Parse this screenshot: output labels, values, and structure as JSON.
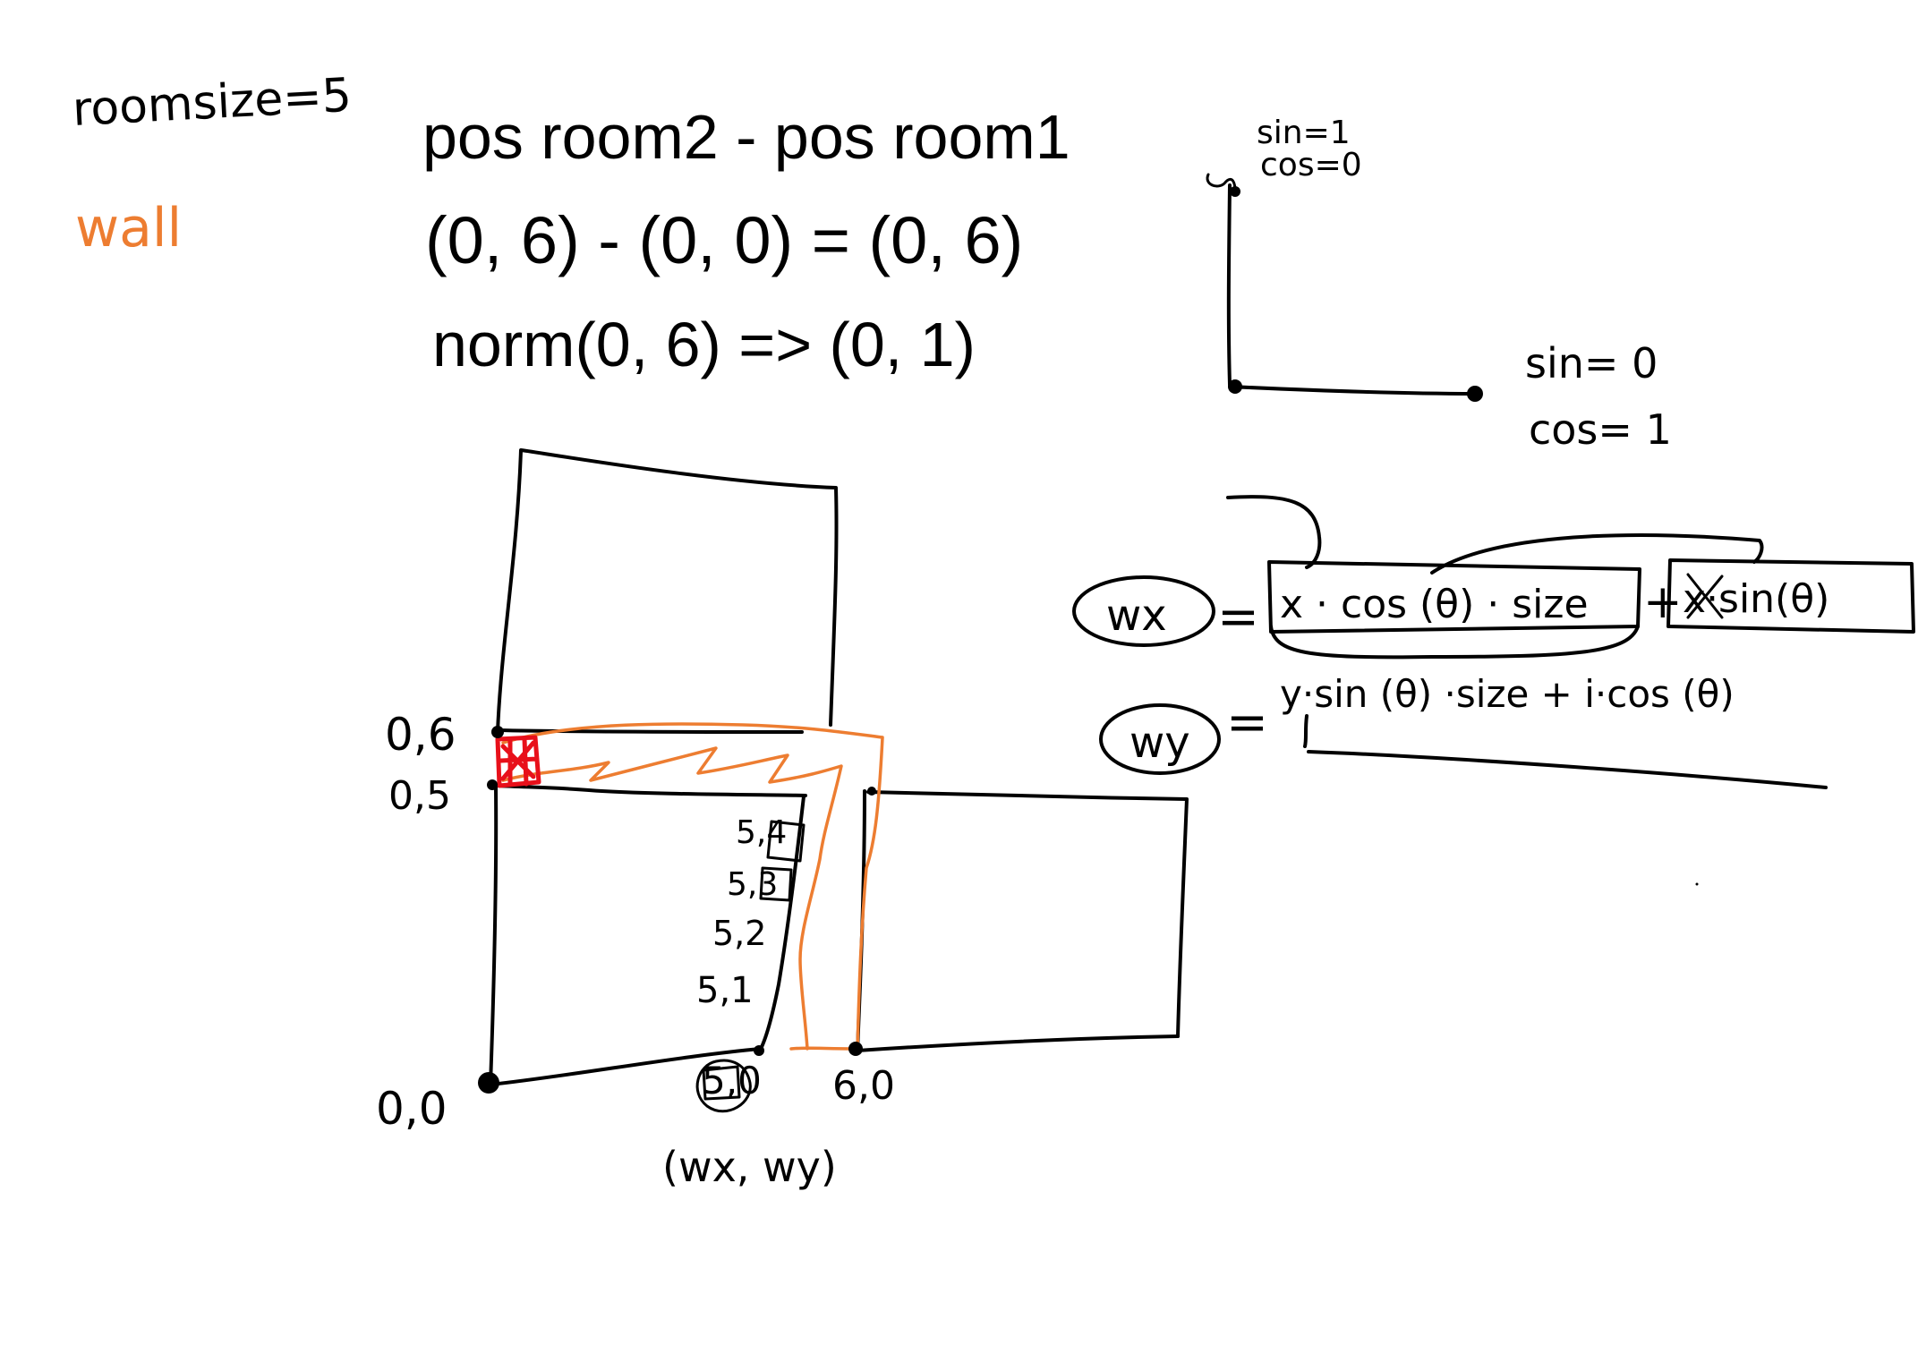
{
  "equations": {
    "line1": "pos room2 - pos room1",
    "line2": "(0, 6) - (0, 0) = (0, 6)",
    "line3": "norm(0, 6) => (0, 1)"
  },
  "notes": {
    "room_size": "roomsize=5",
    "wall": "wall",
    "sin_top": "sin=1",
    "cos_top": "cos=0",
    "sin_right": "sin= 0",
    "cos_right": "cos= 1"
  },
  "formulas": {
    "wx_label": "wx",
    "wx_eq": "=",
    "wx_term1": "x · cos (θ) · size",
    "wx_plus": "+",
    "wx_term2": "x·sin(θ)",
    "wy_label": "wy",
    "wy_eq": "=",
    "wy_expr": "y·sin (θ) ·size + i·cos (θ)"
  },
  "points": {
    "p06": "0,6",
    "p05": "0,5",
    "p00": "0,0",
    "p60": "6,0",
    "p50": "5,0",
    "s4": "5,4",
    "s3": "5,3",
    "s2": "5,2",
    "s1": "5,1",
    "wxwy": "(wx, wy)"
  },
  "colors": {
    "ink": "#000000",
    "wall": "#ed7d31",
    "marker": "#e8101a"
  }
}
